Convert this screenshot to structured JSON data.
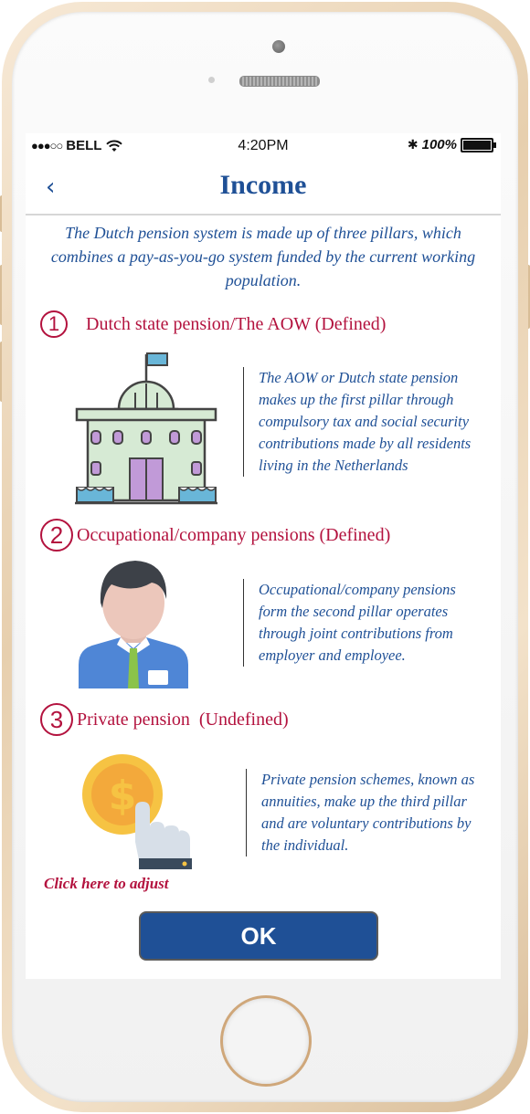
{
  "status_bar": {
    "carrier": "BELL",
    "time": "4:20PM",
    "battery": "100%"
  },
  "navbar": {
    "back_icon": "chevron-left",
    "title": "Income"
  },
  "intro": "The Dutch pension system is made up of three pillars, which combines a pay-as-you-go system funded by the current working population.",
  "sections": [
    {
      "number": "1",
      "heading": "Dutch state pension/The AOW  (Defined)",
      "icon": "government-building",
      "description": "The AOW or Dutch state pension makes up the first pillar through compulsory tax and social security contributions made by all residents living in the Netherlands"
    },
    {
      "number": "2",
      "heading": "Occupational/company pensions (Defined)",
      "icon": "employee",
      "description": "Occupational/company pensions form the second pillar operates through joint contributions from employer and employee."
    },
    {
      "number": "3",
      "heading": "Private pension  (Undefined)",
      "icon": "hand-dollar-coin",
      "description": "Private pension schemes, known as annuities, make up the third pillar and are voluntary contributions by the individual."
    }
  ],
  "click_adjust": "Click here to adjust",
  "ok_button": "OK",
  "colors": {
    "primary_blue": "#1f5096",
    "accent_red": "#b3123e"
  }
}
